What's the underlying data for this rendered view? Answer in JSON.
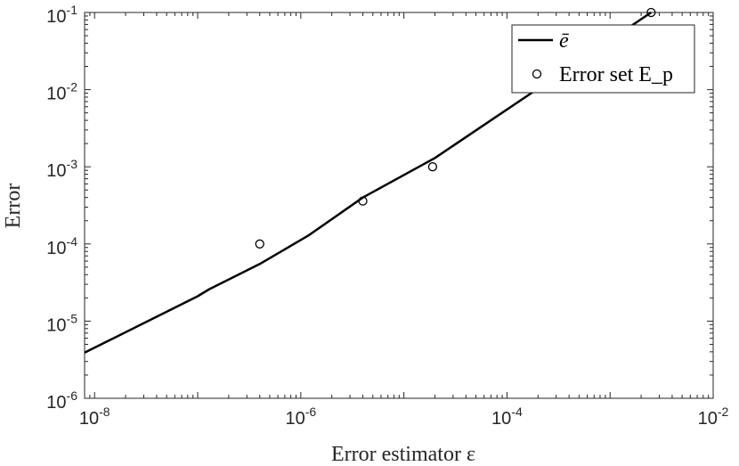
{
  "chart_data": {
    "type": "line",
    "xlabel": "Error estimator ε",
    "ylabel": "Error",
    "xscale": "log",
    "yscale": "log",
    "xlim": [
      8e-09,
      0.01
    ],
    "ylim": [
      1e-06,
      0.1
    ],
    "grid": false,
    "legend_position": "top-right",
    "xtick_labels": [
      {
        "base": "10",
        "exp": "-8",
        "value": 1e-08
      },
      {
        "base": "10",
        "exp": "-6",
        "value": 1e-06
      },
      {
        "base": "10",
        "exp": "-4",
        "value": 0.0001
      },
      {
        "base": "10",
        "exp": "-2",
        "value": 0.01
      }
    ],
    "ytick_labels": [
      {
        "base": "10",
        "exp": "-6",
        "value": 1e-06
      },
      {
        "base": "10",
        "exp": "-5",
        "value": 1e-05
      },
      {
        "base": "10",
        "exp": "-4",
        "value": 0.0001
      },
      {
        "base": "10",
        "exp": "-3",
        "value": 0.001
      },
      {
        "base": "10",
        "exp": "-2",
        "value": 0.01
      },
      {
        "base": "10",
        "exp": "-1",
        "value": 0.1
      }
    ],
    "series": [
      {
        "name": "ē",
        "kind": "line",
        "color": "#000000",
        "x": [
          8e-09,
          1e-07,
          1.3e-07,
          4e-07,
          1.2e-06,
          4e-06,
          2e-05,
          0.0025
        ],
        "y": [
          3.9e-06,
          2.1e-05,
          2.6e-05,
          5.5e-05,
          0.00013,
          0.0004,
          0.0013,
          0.1
        ]
      },
      {
        "name": "Error set E_p",
        "kind": "scatter",
        "marker": "circle-open",
        "color": "#000000",
        "x": [
          4e-07,
          4e-06,
          1.9e-05,
          0.0025
        ],
        "y": [
          0.0001,
          0.00036,
          0.001,
          0.1
        ]
      }
    ]
  }
}
